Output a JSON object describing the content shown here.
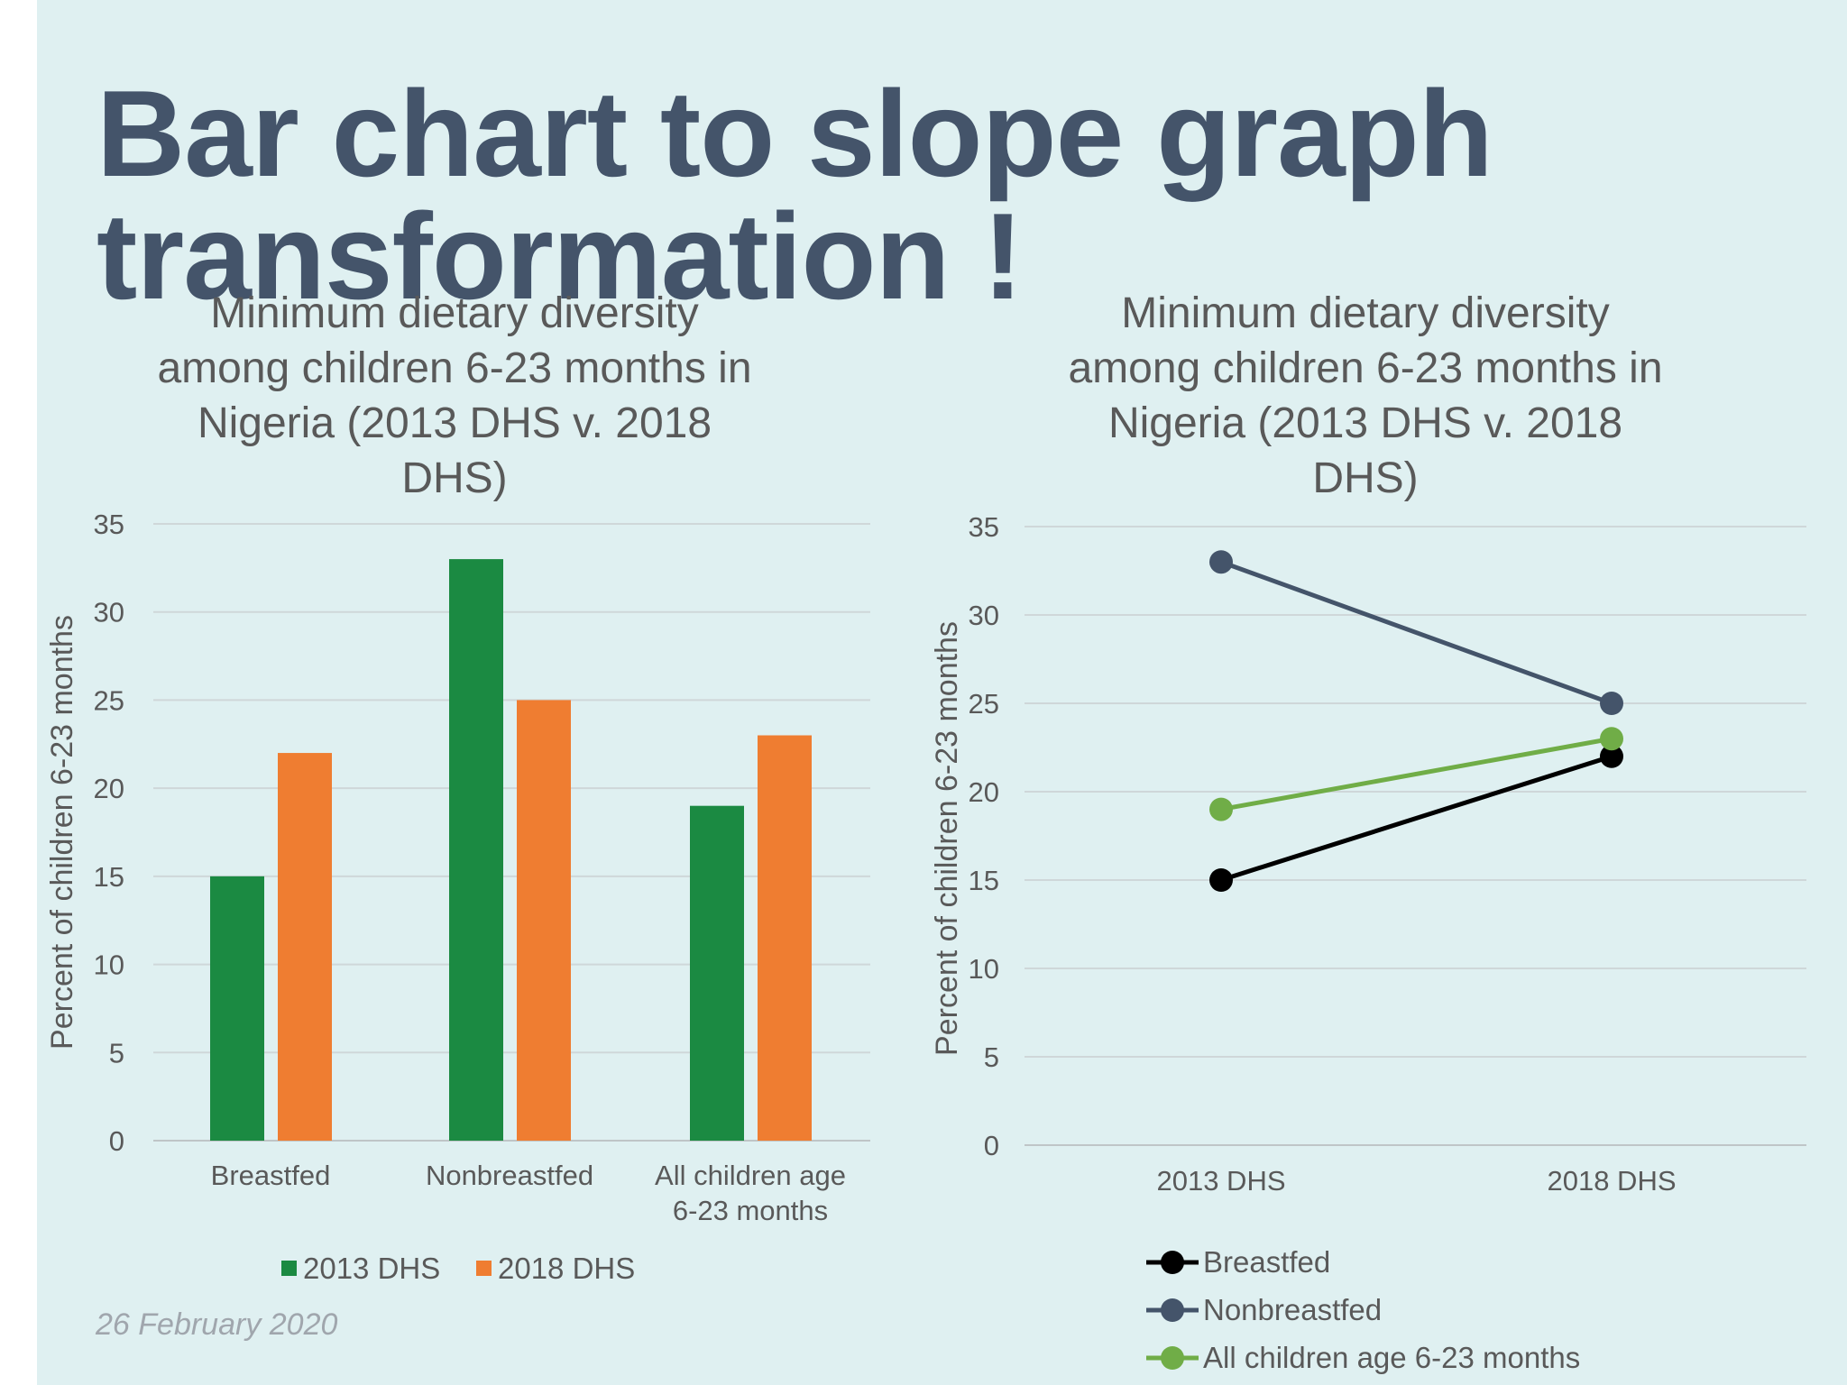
{
  "slide": {
    "title": "Bar chart to slope graph transformation !",
    "date": "26 February 2020"
  },
  "chart_data": [
    {
      "type": "bar",
      "title": "Minimum dietary diversity among children 6-23 months in Nigeria (2013 DHS v. 2018 DHS)",
      "title_lines": [
        "Minimum dietary diversity",
        "among children 6-23 months in",
        "Nigeria (2013 DHS v. 2018",
        "DHS)"
      ],
      "ylabel": "Percent of children 6-23 months",
      "ylim": [
        0,
        35
      ],
      "yticks": [
        "0",
        "5",
        "10",
        "15",
        "20",
        "25",
        "30",
        "35"
      ],
      "ytick_values": [
        0,
        5,
        10,
        15,
        20,
        25,
        30,
        35
      ],
      "categories": [
        "Breastfed",
        "Nonbreastfed",
        "All children age 6-23 months"
      ],
      "category_lines": [
        [
          "Breastfed"
        ],
        [
          "Nonbreastfed"
        ],
        [
          "All children age",
          "6-23 months"
        ]
      ],
      "series": [
        {
          "name": "2013 DHS",
          "color": "#1b8a42",
          "values": [
            15,
            33,
            19
          ]
        },
        {
          "name": "2018 DHS",
          "color": "#ef7d31",
          "values": [
            22,
            25,
            23
          ]
        }
      ],
      "grid": true,
      "legend_position": "bottom"
    },
    {
      "type": "line",
      "title": "Minimum dietary diversity among children 6-23 months in Nigeria (2013 DHS v. 2018 DHS)",
      "title_lines": [
        "Minimum dietary diversity",
        "among children 6-23 months in",
        "Nigeria (2013 DHS v. 2018",
        "DHS)"
      ],
      "ylabel": "Percent of children 6-23 months",
      "ylim": [
        0,
        35
      ],
      "yticks": [
        "0",
        "5",
        "10",
        "15",
        "20",
        "25",
        "30",
        "35"
      ],
      "ytick_values": [
        0,
        5,
        10,
        15,
        20,
        25,
        30,
        35
      ],
      "x": [
        "2013 DHS",
        "2018 DHS"
      ],
      "series": [
        {
          "name": "Breastfed",
          "color": "#000000",
          "values": [
            15,
            22
          ]
        },
        {
          "name": "Nonbreastfed",
          "color": "#44546a",
          "values": [
            33,
            25
          ]
        },
        {
          "name": "All children age 6-23 months",
          "color": "#70ad47",
          "values": [
            19,
            23
          ]
        }
      ],
      "grid": true,
      "legend_position": "bottom"
    }
  ]
}
